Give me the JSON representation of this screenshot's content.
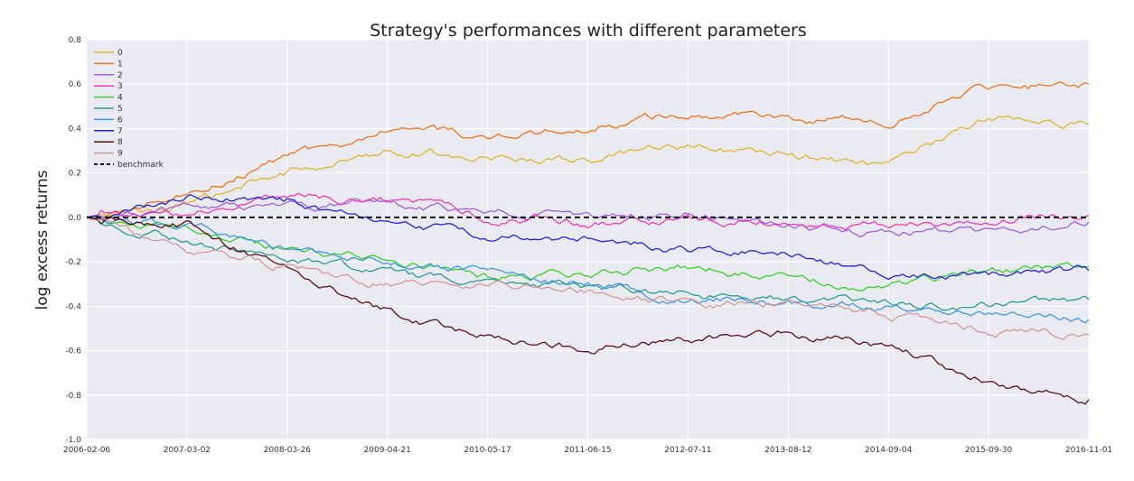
{
  "chart_data": {
    "type": "line",
    "title": "Strategy's performances with different parameters",
    "xlabel": "",
    "ylabel": "log excess returns",
    "x_ticks": [
      "2006-02-06",
      "2007-03-02",
      "2008-03-26",
      "2009-04-21",
      "2010-05-17",
      "2011-06-15",
      "2012-07-11",
      "2013-08-12",
      "2014-09-04",
      "2015-09-30",
      "2016-11-01"
    ],
    "y_ticks": [
      "0.8",
      "0.6",
      "0.4",
      "0.2",
      "0.0",
      "-0.2",
      "-0.4",
      "-0.6",
      "-0.8",
      "-1.0"
    ],
    "ylim": [
      -1.0,
      0.8
    ],
    "grid": true,
    "legend_position": "top-left",
    "x": [
      "2006-02-06",
      "2007-03-02",
      "2008-03-26",
      "2009-04-21",
      "2010-05-17",
      "2011-06-15",
      "2012-07-11",
      "2013-08-12",
      "2014-09-04",
      "2015-09-30",
      "2016-11-01"
    ],
    "series": [
      {
        "name": "0",
        "color": "#e0b52a",
        "values": [
          0.0,
          0.05,
          0.2,
          0.31,
          0.27,
          0.26,
          0.32,
          0.28,
          0.22,
          0.45,
          0.42
        ]
      },
      {
        "name": "1",
        "color": "#ee7417",
        "values": [
          0.0,
          0.12,
          0.26,
          0.39,
          0.37,
          0.4,
          0.47,
          0.45,
          0.43,
          0.58,
          0.6
        ]
      },
      {
        "name": "2",
        "color": "#a25ee6",
        "values": [
          0.0,
          0.04,
          0.05,
          0.06,
          0.02,
          0.0,
          0.01,
          -0.04,
          -0.07,
          -0.07,
          -0.02
        ]
      },
      {
        "name": "3",
        "color": "#ef3cb4",
        "values": [
          0.0,
          0.02,
          0.09,
          0.08,
          0.0,
          -0.02,
          -0.01,
          -0.01,
          -0.04,
          -0.01,
          0.01
        ]
      },
      {
        "name": "4",
        "color": "#38d128",
        "values": [
          0.0,
          -0.06,
          -0.14,
          -0.2,
          -0.27,
          -0.25,
          -0.22,
          -0.28,
          -0.3,
          -0.24,
          -0.22
        ]
      },
      {
        "name": "5",
        "color": "#2c9c8d",
        "values": [
          0.0,
          -0.1,
          -0.18,
          -0.25,
          -0.3,
          -0.31,
          -0.34,
          -0.37,
          -0.38,
          -0.4,
          -0.37
        ]
      },
      {
        "name": "6",
        "color": "#3e97e8",
        "values": [
          0.0,
          -0.04,
          -0.15,
          -0.2,
          -0.25,
          -0.3,
          -0.37,
          -0.38,
          -0.4,
          -0.42,
          -0.46
        ]
      },
      {
        "name": "7",
        "color": "#2424e0",
        "values": [
          0.0,
          0.1,
          0.07,
          -0.03,
          -0.08,
          -0.1,
          -0.14,
          -0.17,
          -0.24,
          -0.27,
          -0.24
        ]
      },
      {
        "name": "8",
        "color": "#5c1016",
        "values": [
          0.0,
          -0.03,
          -0.24,
          -0.43,
          -0.53,
          -0.6,
          -0.54,
          -0.52,
          -0.58,
          -0.74,
          -0.82
        ]
      },
      {
        "name": "9",
        "color": "#d49a95",
        "values": [
          0.0,
          -0.15,
          -0.22,
          -0.3,
          -0.31,
          -0.33,
          -0.39,
          -0.38,
          -0.44,
          -0.52,
          -0.53
        ]
      },
      {
        "name": "benchmark",
        "color": "#111111",
        "dashed": true,
        "values": [
          0.0,
          0.0,
          0.0,
          0.0,
          0.0,
          0.0,
          0.0,
          0.0,
          0.0,
          0.0,
          0.0
        ]
      }
    ]
  }
}
